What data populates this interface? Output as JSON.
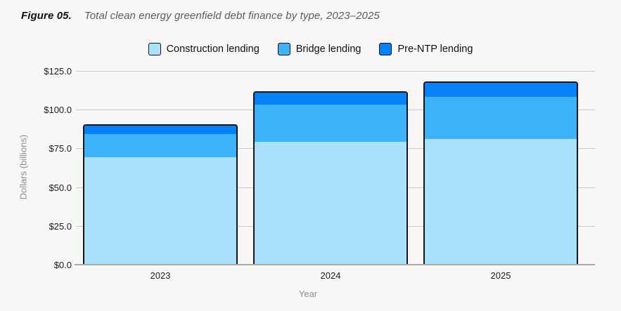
{
  "figure": {
    "label": "Figure 05.",
    "title": "Total clean energy greenfield debt finance by type, 2023–2025"
  },
  "chart_data": {
    "type": "bar",
    "stacked": true,
    "title": "Total clean energy greenfield debt finance by type, 2023–2025",
    "categories": [
      "2023",
      "2024",
      "2025"
    ],
    "series": [
      {
        "name": "Construction lending",
        "color": "#a9e0fa",
        "values": [
          70,
          80,
          82
        ]
      },
      {
        "name": "Bridge lending",
        "color": "#3fb3f9",
        "values": [
          15,
          24,
          27
        ]
      },
      {
        "name": "Pre-NTP lending",
        "color": "#0681f8",
        "values": [
          5.5,
          8,
          9
        ]
      }
    ],
    "totals": [
      90.5,
      112,
      118
    ],
    "xlabel": "Year",
    "ylabel": "Dollars (billions)",
    "ylim": [
      0,
      125
    ],
    "yticks": [
      {
        "value": 125,
        "label": "$125.0"
      },
      {
        "value": 100,
        "label": "$100.0"
      },
      {
        "value": 75,
        "label": "$75.0"
      },
      {
        "value": 50,
        "label": "$50.0"
      },
      {
        "value": 25,
        "label": "$25.0"
      },
      {
        "value": 0,
        "label": "$0.0"
      }
    ],
    "grid": true,
    "legend_position": "top"
  },
  "colors": {
    "background": "#f8f7f5",
    "construction": "#a9e0fa",
    "bridge": "#3fb3f9",
    "pre_ntp": "#0681f8",
    "bar_border": "#15151c",
    "gridline": "#cbcbcb",
    "axis_line": "#a9a9a9",
    "tick_text": "#1c1c1c",
    "muted_text": "#8e8e8e",
    "subtitle_text": "#5c5c5c"
  }
}
